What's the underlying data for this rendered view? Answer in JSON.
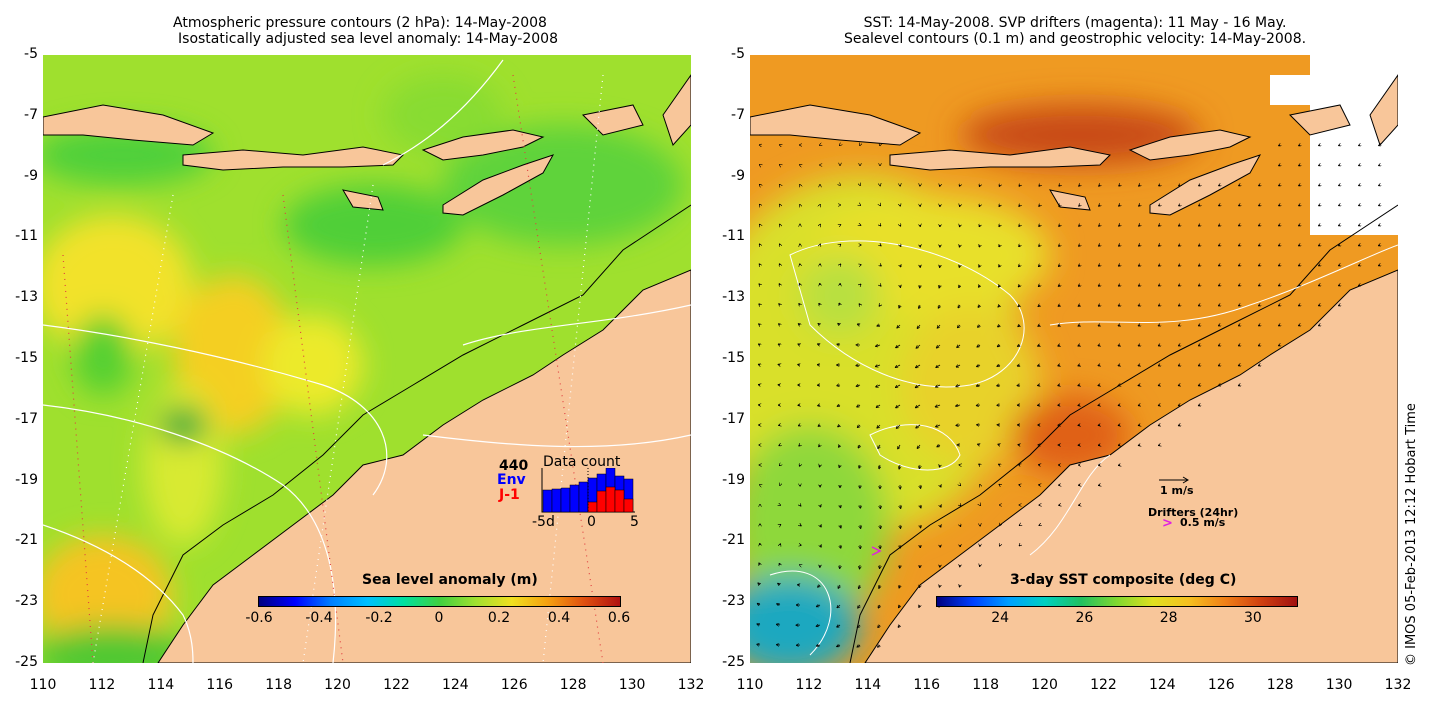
{
  "left_panel": {
    "title_line1": "Atmospheric pressure contours (2 hPa): 14-May-2008",
    "title_line2": "Isostatically adjusted sea level anomaly: 14-May-2008",
    "colorbar": {
      "title": "Sea level anomaly (m)",
      "ticks": [
        "-0.6",
        "-0.4",
        "-0.2",
        "0",
        "0.2",
        "0.4",
        "0.6"
      ],
      "range": [
        -0.6,
        0.6
      ]
    },
    "data_count": {
      "title": "Data count",
      "total": "440",
      "env_label": "Env",
      "j1_label": "J-1",
      "x_ticks": [
        "-5d",
        "0",
        "5"
      ],
      "env_values": [
        22,
        23,
        24,
        27,
        30,
        34,
        38,
        44,
        36,
        33
      ],
      "j1_values": [
        0,
        0,
        0,
        0,
        0,
        10,
        21,
        25,
        22,
        13
      ]
    }
  },
  "right_panel": {
    "title_line1": "SST: 14-May-2008. SVP drifters (magenta): 11 May - 16 May.",
    "title_line2": "Sealevel contours (0.1 m) and geostrophic velocity: 14-May-2008.",
    "colorbar": {
      "title": "3-day SST composite (deg C)",
      "ticks": [
        "24",
        "26",
        "28",
        "30"
      ],
      "range": [
        22.5,
        31
      ]
    },
    "velocity_legend": "1 m/s",
    "drifters_label": "Drifters (24hr)",
    "drifter_speed": "0.5 m/s",
    "drifter_symbol": ">"
  },
  "axes": {
    "lat_ticks": [
      "-5",
      "-7",
      "-9",
      "-11",
      "-13",
      "-15",
      "-17",
      "-19",
      "-21",
      "-23",
      "-25"
    ],
    "lon_ticks": [
      "110",
      "112",
      "114",
      "116",
      "118",
      "120",
      "122",
      "124",
      "126",
      "128",
      "130",
      "132"
    ],
    "lat_range": [
      -25,
      -5
    ],
    "lon_range": [
      110,
      132
    ]
  },
  "credit": "© IMOS 05-Feb-2013 12:12 Hobart Time",
  "colors": {
    "land": "#f8c69a",
    "sla_background": "#9ee62d",
    "sst_background": "#f09a24"
  }
}
